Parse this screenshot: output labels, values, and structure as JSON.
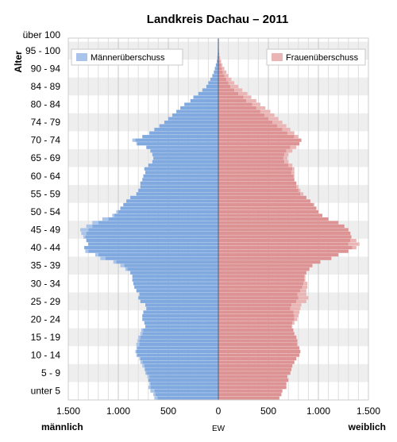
{
  "chart_data": {
    "type": "bar",
    "title": "Landkreis Dachau – 2011",
    "ylabel": "Alter",
    "xlabel": "EW",
    "left_label": "männlich",
    "right_label": "weiblich",
    "xlim": [
      -1500,
      1500
    ],
    "x_tick_values": [
      -1500,
      -1000,
      -500,
      0,
      500,
      1000,
      1500
    ],
    "x_tick_labels": [
      "1.500",
      "1.000",
      "500",
      "0",
      "500",
      "1.000",
      "1.500"
    ],
    "age_group_labels": [
      "unter 5",
      "5 - 9",
      "10 - 14",
      "15 - 19",
      "20 - 24",
      "25 - 29",
      "30 - 34",
      "35 - 39",
      "40 - 44",
      "45 - 49",
      "50 - 54",
      "55 - 59",
      "60 - 64",
      "65 - 69",
      "70 - 74",
      "74 - 79",
      "80 - 84",
      "84 - 89",
      "90 - 94",
      "95 - 100",
      "über 100"
    ],
    "legend": [
      {
        "name": "Männerüberschuss",
        "color": "#a9c4ea"
      },
      {
        "name": "Frauenüberschuss",
        "color": "#eab5b5"
      }
    ],
    "colors": {
      "male": "#80a9e0",
      "female": "#dd9393",
      "male_excess": "#a9c4ea",
      "female_excess": "#eab5b5"
    },
    "ages": [
      0,
      1,
      2,
      3,
      4,
      5,
      6,
      7,
      8,
      9,
      10,
      11,
      12,
      13,
      14,
      15,
      16,
      17,
      18,
      19,
      20,
      21,
      22,
      23,
      24,
      25,
      26,
      27,
      28,
      29,
      30,
      31,
      32,
      33,
      34,
      35,
      36,
      37,
      38,
      39,
      40,
      41,
      42,
      43,
      44,
      45,
      46,
      47,
      48,
      49,
      50,
      51,
      52,
      53,
      54,
      55,
      56,
      57,
      58,
      59,
      60,
      61,
      62,
      63,
      64,
      65,
      66,
      67,
      68,
      69,
      70,
      71,
      72,
      73,
      74,
      75,
      76,
      77,
      78,
      79,
      80,
      81,
      82,
      83,
      84,
      85,
      86,
      87,
      88,
      89,
      90,
      91,
      92,
      93,
      94,
      95,
      96,
      97,
      98,
      99,
      100
    ],
    "male": [
      640,
      650,
      680,
      700,
      690,
      700,
      710,
      730,
      740,
      760,
      780,
      790,
      820,
      830,
      820,
      820,
      810,
      800,
      780,
      770,
      730,
      740,
      760,
      760,
      750,
      720,
      730,
      780,
      800,
      790,
      820,
      840,
      850,
      860,
      860,
      880,
      930,
      980,
      1050,
      1180,
      1230,
      1330,
      1340,
      1300,
      1320,
      1350,
      1370,
      1380,
      1320,
      1260,
      1160,
      1060,
      1020,
      980,
      950,
      920,
      880,
      820,
      800,
      780,
      780,
      760,
      750,
      730,
      740,
      700,
      660,
      650,
      660,
      680,
      720,
      820,
      860,
      760,
      690,
      640,
      590,
      540,
      500,
      460,
      420,
      380,
      340,
      280,
      250,
      200,
      160,
      120,
      100,
      80,
      60,
      45,
      35,
      25,
      15,
      10,
      7,
      5,
      3,
      2,
      1
    ],
    "female": [
      610,
      630,
      640,
      680,
      680,
      700,
      690,
      720,
      730,
      740,
      760,
      780,
      810,
      820,
      810,
      790,
      790,
      780,
      760,
      750,
      740,
      760,
      790,
      800,
      810,
      820,
      830,
      880,
      900,
      880,
      880,
      890,
      890,
      870,
      870,
      880,
      910,
      940,
      1020,
      1130,
      1200,
      1300,
      1380,
      1410,
      1380,
      1330,
      1320,
      1300,
      1260,
      1200,
      1100,
      1040,
      1000,
      980,
      960,
      920,
      880,
      850,
      820,
      800,
      780,
      760,
      760,
      760,
      760,
      740,
      700,
      690,
      700,
      740,
      780,
      810,
      830,
      800,
      760,
      720,
      680,
      640,
      600,
      560,
      520,
      470,
      420,
      380,
      330,
      290,
      240,
      200,
      160,
      130,
      100,
      80,
      60,
      40,
      28,
      18,
      10,
      6,
      3,
      2,
      1
    ]
  }
}
